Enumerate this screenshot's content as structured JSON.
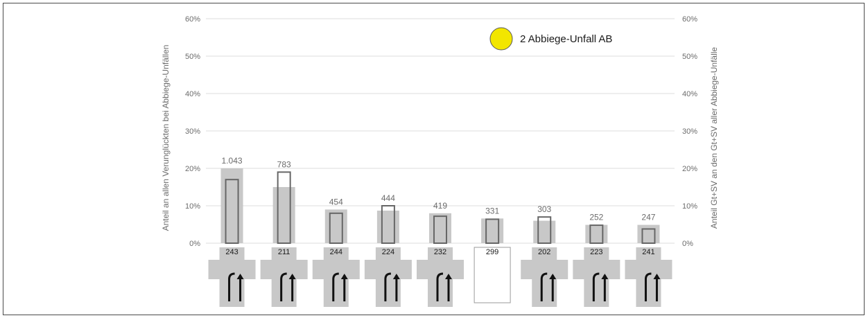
{
  "chart_data": {
    "type": "bar",
    "legend": {
      "label": "2 Abbiege-Unfall AB",
      "marker_color": "#f2e600",
      "position": "top-right"
    },
    "ylabel_left": "Anteil an allen Verunglückten bei Abbiege-Unfällen",
    "ylabel_right": "Anteil Gt+SV an den Gt+SV aller Abbiege-Unfälle",
    "ylim": [
      0,
      60
    ],
    "yticks_left": [
      "0%",
      "10%",
      "20%",
      "30%",
      "40%",
      "50%",
      "60%"
    ],
    "yticks_right": [
      "0%",
      "10%",
      "20%",
      "30%",
      "40%",
      "50%",
      "60%"
    ],
    "grid": true,
    "categories": [
      "243",
      "211",
      "244",
      "224",
      "232",
      "299",
      "202",
      "223",
      "241"
    ],
    "value_labels": [
      "1.043",
      "783",
      "454",
      "444",
      "419",
      "331",
      "303",
      "252",
      "247"
    ],
    "series": [
      {
        "values": [
          20,
          15,
          9,
          8.7,
          8,
          6.6,
          6,
          4.9,
          4.9
        ],
        "color": "#c8c8c8"
      },
      {
        "values": [
          17,
          19,
          8,
          10,
          7.2,
          6.4,
          7,
          4.8,
          3.8
        ],
        "color": "#666666"
      }
    ]
  }
}
